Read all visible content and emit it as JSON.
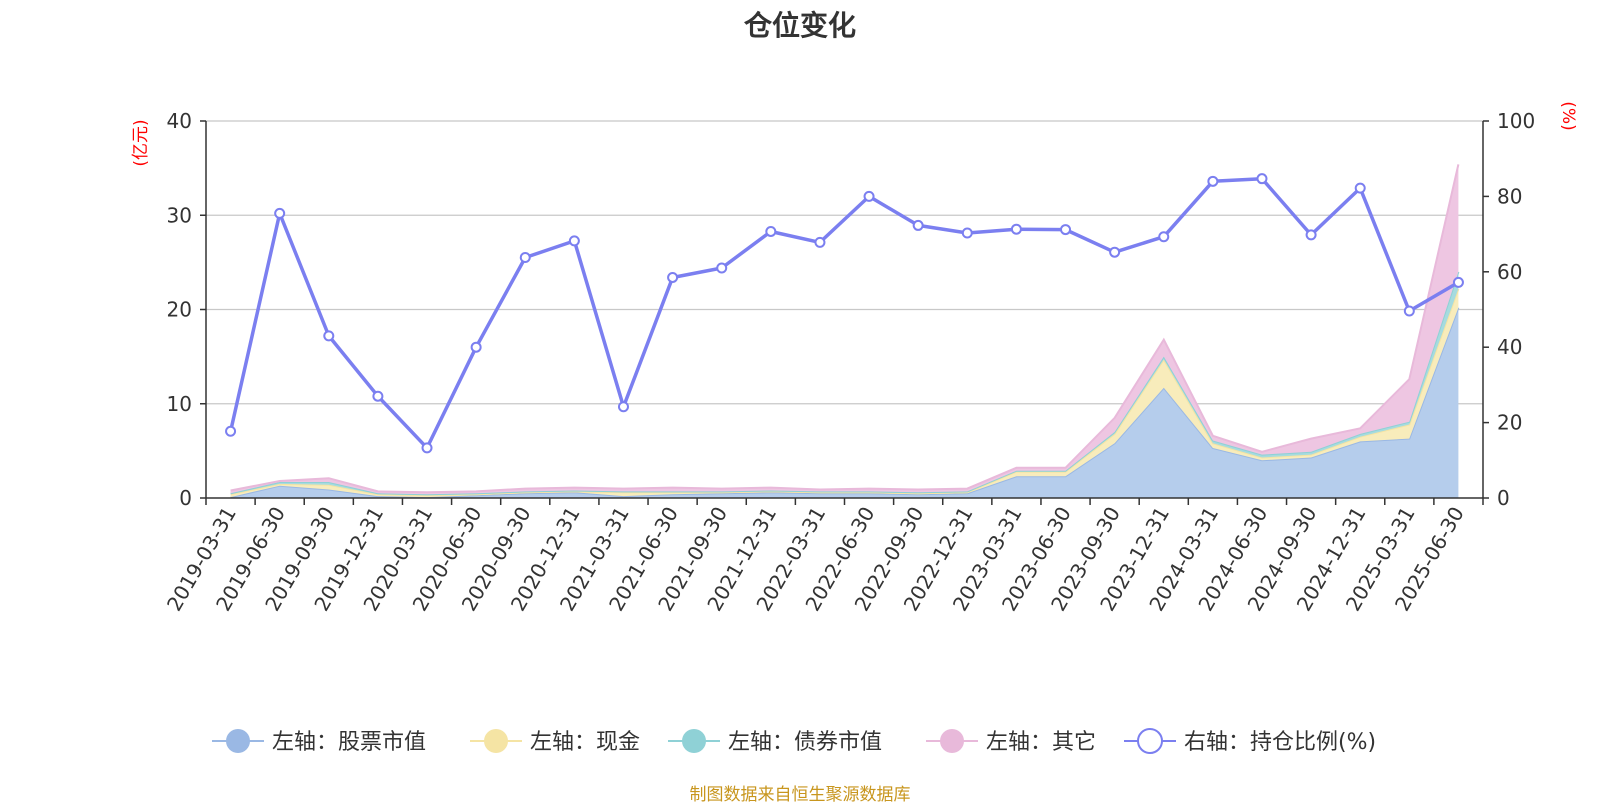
{
  "chart_data": {
    "type": "area",
    "title": "仓位变化",
    "source_note": "制图数据来自恒生聚源数据库",
    "left_axis": {
      "unit": "(亿元)",
      "min": 0,
      "max": 40,
      "ticks": [
        0,
        10,
        20,
        30,
        40
      ]
    },
    "right_axis": {
      "unit": "(%)",
      "min": 0,
      "max": 100,
      "ticks": [
        0,
        20,
        40,
        60,
        80,
        100
      ]
    },
    "grid": true,
    "legend_position": "bottom",
    "categories": [
      "2019-03-31",
      "2019-06-30",
      "2019-09-30",
      "2019-12-31",
      "2020-03-31",
      "2020-06-30",
      "2020-09-30",
      "2020-12-31",
      "2021-03-31",
      "2021-06-30",
      "2021-09-30",
      "2021-12-31",
      "2022-03-31",
      "2022-06-30",
      "2022-09-30",
      "2022-12-31",
      "2023-03-31",
      "2023-06-30",
      "2023-09-30",
      "2023-12-31",
      "2024-03-31",
      "2024-06-30",
      "2024-09-30",
      "2024-12-31",
      "2025-03-31",
      "2025-06-30"
    ],
    "series": [
      {
        "name": "左轴：股票市值",
        "axis": "left",
        "stack": true,
        "color": "#9ab8e4",
        "fill": "#b5cdec",
        "values": [
          0.1,
          1.3,
          0.9,
          0.2,
          0.1,
          0.3,
          0.5,
          0.6,
          0.2,
          0.4,
          0.5,
          0.6,
          0.5,
          0.5,
          0.4,
          0.5,
          2.3,
          2.3,
          5.8,
          11.7,
          5.3,
          4.0,
          4.3,
          6.0,
          6.3,
          20.2
        ]
      },
      {
        "name": "左轴：现金",
        "axis": "left",
        "stack": true,
        "color": "#f5e4a4",
        "fill": "#f8ecbb",
        "values": [
          0.3,
          0.2,
          0.5,
          0.2,
          0.2,
          0.1,
          0.1,
          0.1,
          0.4,
          0.2,
          0.1,
          0.1,
          0.1,
          0.1,
          0.1,
          0.1,
          0.5,
          0.5,
          1.0,
          3.0,
          0.5,
          0.3,
          0.3,
          0.5,
          1.5,
          2.0
        ]
      },
      {
        "name": "左轴：债券市值",
        "axis": "left",
        "stack": true,
        "color": "#8fd1d6",
        "fill": "#a6dbdf",
        "values": [
          0.1,
          0.2,
          0.3,
          0.1,
          0.1,
          0.1,
          0.1,
          0.1,
          0.1,
          0.1,
          0.1,
          0.1,
          0.1,
          0.1,
          0.1,
          0.1,
          0.1,
          0.1,
          0.2,
          0.3,
          0.3,
          0.3,
          0.3,
          0.3,
          0.3,
          1.8
        ]
      },
      {
        "name": "左轴：其它",
        "axis": "left",
        "stack": true,
        "color": "#e8b9da",
        "fill": "#eec6e2",
        "values": [
          0.3,
          0.1,
          0.4,
          0.2,
          0.2,
          0.2,
          0.3,
          0.3,
          0.3,
          0.4,
          0.3,
          0.3,
          0.2,
          0.3,
          0.3,
          0.3,
          0.3,
          0.3,
          1.5,
          1.8,
          0.5,
          0.3,
          1.4,
          0.6,
          4.5,
          11.4
        ]
      },
      {
        "name": "右轴：持仓比例(%)",
        "axis": "right",
        "stack": false,
        "color": "#7b7ff0",
        "fill": "none",
        "values": [
          17.7,
          75.5,
          43.0,
          27.0,
          13.3,
          40.0,
          63.8,
          68.2,
          24.2,
          58.5,
          61.0,
          70.7,
          67.8,
          80.0,
          72.3,
          70.3,
          71.3,
          71.2,
          65.2,
          69.3,
          84.0,
          84.7,
          69.8,
          82.2,
          49.6,
          57.2
        ]
      }
    ]
  }
}
